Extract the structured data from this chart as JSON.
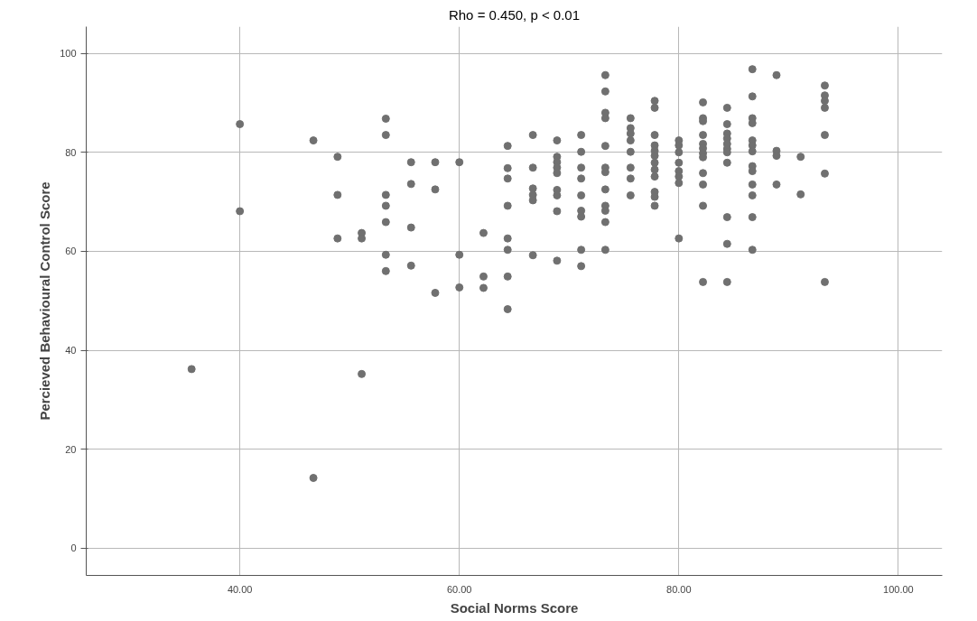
{
  "chart_data": {
    "type": "scatter",
    "title": "Rho = 0.450, p < 0.01",
    "xlabel": "Social Norms Score",
    "ylabel": "Percieved Behavioural Control Score",
    "xlim": [
      26,
      104
    ],
    "ylim": [
      -5.5,
      105.4
    ],
    "xticks": [
      {
        "value": 40,
        "label": "40.00"
      },
      {
        "value": 60,
        "label": "60.00"
      },
      {
        "value": 80,
        "label": "80.00"
      },
      {
        "value": 100,
        "label": "100.00"
      }
    ],
    "yticks": [
      0,
      20,
      40,
      60,
      80,
      100
    ],
    "grid": true,
    "marker": "circle",
    "series": [
      {
        "color": "#707070",
        "x": [
          35.6,
          40,
          40,
          46.7,
          46.7,
          48.9,
          48.9,
          48.9,
          51.1,
          51.1,
          51.1,
          53.3,
          53.3,
          53.3,
          53.3,
          53.3,
          53.3,
          53.3,
          55.6,
          55.6,
          55.6,
          55.6,
          57.8,
          57.8,
          57.8,
          60,
          60,
          60,
          62.2,
          62.2,
          62.2,
          64.4,
          64.4,
          64.4,
          64.4,
          64.4,
          64.4,
          64.4,
          64.4,
          66.7,
          66.7,
          66.7,
          66.7,
          66.7,
          66.7,
          68.9,
          68.9,
          68.9,
          68.9,
          68.9,
          68.9,
          68.9,
          68.9,
          68.9,
          71.1,
          71.1,
          71.1,
          71.1,
          71.1,
          71.1,
          71.1,
          71.1,
          71.1,
          73.3,
          73.3,
          73.3,
          73.3,
          73.3,
          73.3,
          73.3,
          73.3,
          73.3,
          73.3,
          73.3,
          73.3,
          75.6,
          75.6,
          75.6,
          75.6,
          75.6,
          75.6,
          75.6,
          75.6,
          77.8,
          77.8,
          77.8,
          77.8,
          77.8,
          77.8,
          77.8,
          77.8,
          77.8,
          77.8,
          77.8,
          77.8,
          80,
          80,
          80,
          80,
          80,
          80,
          80,
          80,
          82.2,
          82.2,
          82.2,
          82.2,
          82.2,
          82.2,
          82.2,
          82.2,
          82.2,
          82.2,
          82.2,
          82.2,
          84.4,
          84.4,
          84.4,
          84.4,
          84.4,
          84.4,
          84.4,
          84.4,
          84.4,
          84.4,
          84.4,
          86.7,
          86.7,
          86.7,
          86.7,
          86.7,
          86.7,
          86.7,
          86.7,
          86.7,
          86.7,
          86.7,
          86.7,
          86.7,
          88.9,
          88.9,
          88.9,
          88.9,
          91.1,
          91.1,
          93.3,
          93.3,
          93.3,
          93.3,
          93.3,
          93.3,
          93.3
        ],
        "values": [
          36.2,
          85.7,
          68.1,
          82.4,
          14.2,
          79.1,
          71.4,
          62.6,
          63.7,
          62.6,
          35.2,
          86.8,
          83.5,
          71.4,
          69.2,
          65.9,
          59.3,
          56.0,
          78.0,
          73.6,
          64.8,
          57.1,
          78.0,
          72.5,
          51.6,
          78.0,
          59.3,
          52.7,
          63.7,
          54.9,
          52.6,
          81.3,
          76.8,
          74.7,
          69.2,
          62.6,
          60.3,
          54.9,
          48.3,
          83.5,
          76.9,
          72.7,
          71.4,
          70.3,
          59.2,
          82.4,
          79.1,
          78.0,
          76.9,
          75.8,
          72.4,
          71.3,
          68.1,
          58.1,
          83.5,
          80.1,
          76.9,
          74.7,
          71.3,
          68.2,
          67.0,
          60.3,
          57.0,
          95.6,
          92.3,
          88.0,
          86.9,
          81.3,
          76.9,
          76.0,
          72.5,
          69.2,
          68.2,
          65.9,
          60.3,
          86.9,
          84.9,
          83.8,
          82.4,
          80.1,
          76.9,
          74.7,
          71.3,
          90.4,
          89.0,
          83.5,
          81.4,
          80.3,
          79.3,
          77.9,
          76.5,
          75.1,
          72.0,
          71.0,
          69.2,
          82.4,
          81.4,
          80.0,
          77.9,
          76.2,
          75.1,
          73.8,
          62.6,
          90.1,
          86.9,
          86.3,
          83.5,
          81.7,
          80.8,
          79.8,
          79.0,
          75.8,
          73.5,
          69.2,
          53.8,
          89.0,
          85.7,
          83.8,
          82.8,
          81.7,
          80.7,
          80.0,
          77.9,
          66.9,
          61.5,
          53.8,
          96.8,
          91.3,
          86.9,
          85.9,
          82.4,
          81.4,
          80.2,
          77.2,
          76.2,
          73.5,
          71.3,
          66.9,
          60.3,
          95.6,
          80.3,
          79.3,
          73.5,
          79.1,
          71.5,
          93.5,
          91.5,
          90.4,
          89.0,
          83.5,
          75.7,
          53.8
        ]
      }
    ]
  }
}
